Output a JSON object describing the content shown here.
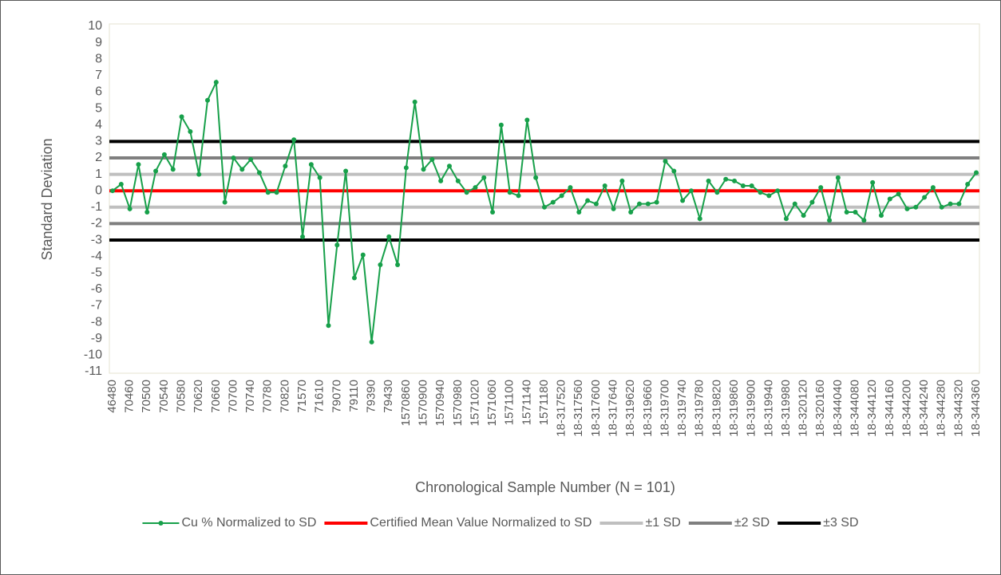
{
  "chart_data": {
    "type": "line",
    "x_label": "Chronological Sample Number (N = 101)",
    "y_label": "Standard Deviation",
    "categories": [
      "46480",
      null,
      "70460",
      null,
      "70500",
      null,
      "70540",
      null,
      "70580",
      null,
      "70620",
      null,
      "70660",
      null,
      "70700",
      null,
      "70740",
      null,
      "70780",
      null,
      "70820",
      null,
      "71570",
      null,
      "71610",
      null,
      "79070",
      null,
      "79110",
      null,
      "79390",
      null,
      "79430",
      null,
      "1570860",
      null,
      "1570900",
      null,
      "1570940",
      null,
      "1570980",
      null,
      "1571020",
      null,
      "1571060",
      null,
      "1571100",
      null,
      "1571140",
      null,
      "1571180",
      null,
      "18-317520",
      null,
      "18-317560",
      null,
      "18-317600",
      null,
      "18-317640",
      null,
      "18-319620",
      null,
      "18-319660",
      null,
      "18-319700",
      null,
      "18-319740",
      null,
      "18-319780",
      null,
      "18-319820",
      null,
      "18-319860",
      null,
      "18-319900",
      null,
      "18-319940",
      null,
      "18-319980",
      null,
      "18-320120",
      null,
      "18-320160",
      null,
      "18-344040",
      null,
      "18-344080",
      null,
      "18-344120",
      null,
      "18-344160",
      null,
      "18-344200",
      null,
      "18-344240",
      null,
      "18-344280",
      null,
      "18-344320",
      null,
      "18-344360"
    ],
    "series": [
      {
        "name": "Cu % Normalized to SD",
        "color": "#17a04a",
        "values": [
          0,
          0.4,
          -1.1,
          1.6,
          -1.3,
          1.2,
          2.2,
          1.3,
          4.5,
          3.6,
          1.0,
          5.5,
          6.6,
          -0.7,
          2.0,
          1.3,
          1.9,
          1.1,
          -0.1,
          -0.1,
          1.5,
          3.1,
          -2.8,
          1.6,
          0.8,
          -8.2,
          -3.3,
          1.2,
          -5.3,
          -3.9,
          -9.2,
          -4.5,
          -2.8,
          -4.5,
          1.4,
          5.4,
          1.3,
          1.9,
          0.6,
          1.5,
          0.6,
          -0.1,
          0.2,
          0.8,
          -1.3,
          4.0,
          -0.1,
          -0.3,
          4.3,
          0.8,
          -1.0,
          -0.7,
          -0.3,
          0.2,
          -1.3,
          -0.6,
          -0.8,
          0.3,
          -1.1,
          0.6,
          -1.3,
          -0.8,
          -0.8,
          -0.7,
          1.8,
          1.2,
          -0.6,
          0.0,
          -1.7,
          0.6,
          -0.1,
          0.7,
          0.6,
          0.3,
          0.3,
          -0.1,
          -0.3,
          0.0,
          -1.7,
          -0.8,
          -1.5,
          -0.7,
          0.2,
          -1.8,
          0.8,
          -1.3,
          -1.3,
          -1.8,
          0.5,
          -1.5,
          -0.5,
          -0.2,
          -1.1,
          -1.0,
          -0.4,
          0.2,
          -1.0,
          -0.8,
          -0.8,
          0.4,
          1.1
        ]
      }
    ],
    "reference_lines": [
      {
        "name": "Certified Mean Value Normalized to SD",
        "color": "#ff0000",
        "values": [
          0
        ]
      },
      {
        "name": "±1 SD",
        "color": "#bfbfbf",
        "values": [
          1,
          -1
        ]
      },
      {
        "name": "±2 SD",
        "color": "#7f7f7f",
        "values": [
          2,
          -2
        ]
      },
      {
        "name": "±3 SD",
        "color": "#000000",
        "values": [
          3,
          -3
        ]
      }
    ],
    "ylim": [
      -11,
      10
    ],
    "yticks": [
      10,
      9,
      8,
      7,
      6,
      5,
      4,
      3,
      2,
      1,
      0,
      -1,
      -2,
      -3,
      -4,
      -5,
      -6,
      -7,
      -8,
      -9,
      -10,
      -11
    ],
    "grid": false,
    "legend": "bottom"
  }
}
